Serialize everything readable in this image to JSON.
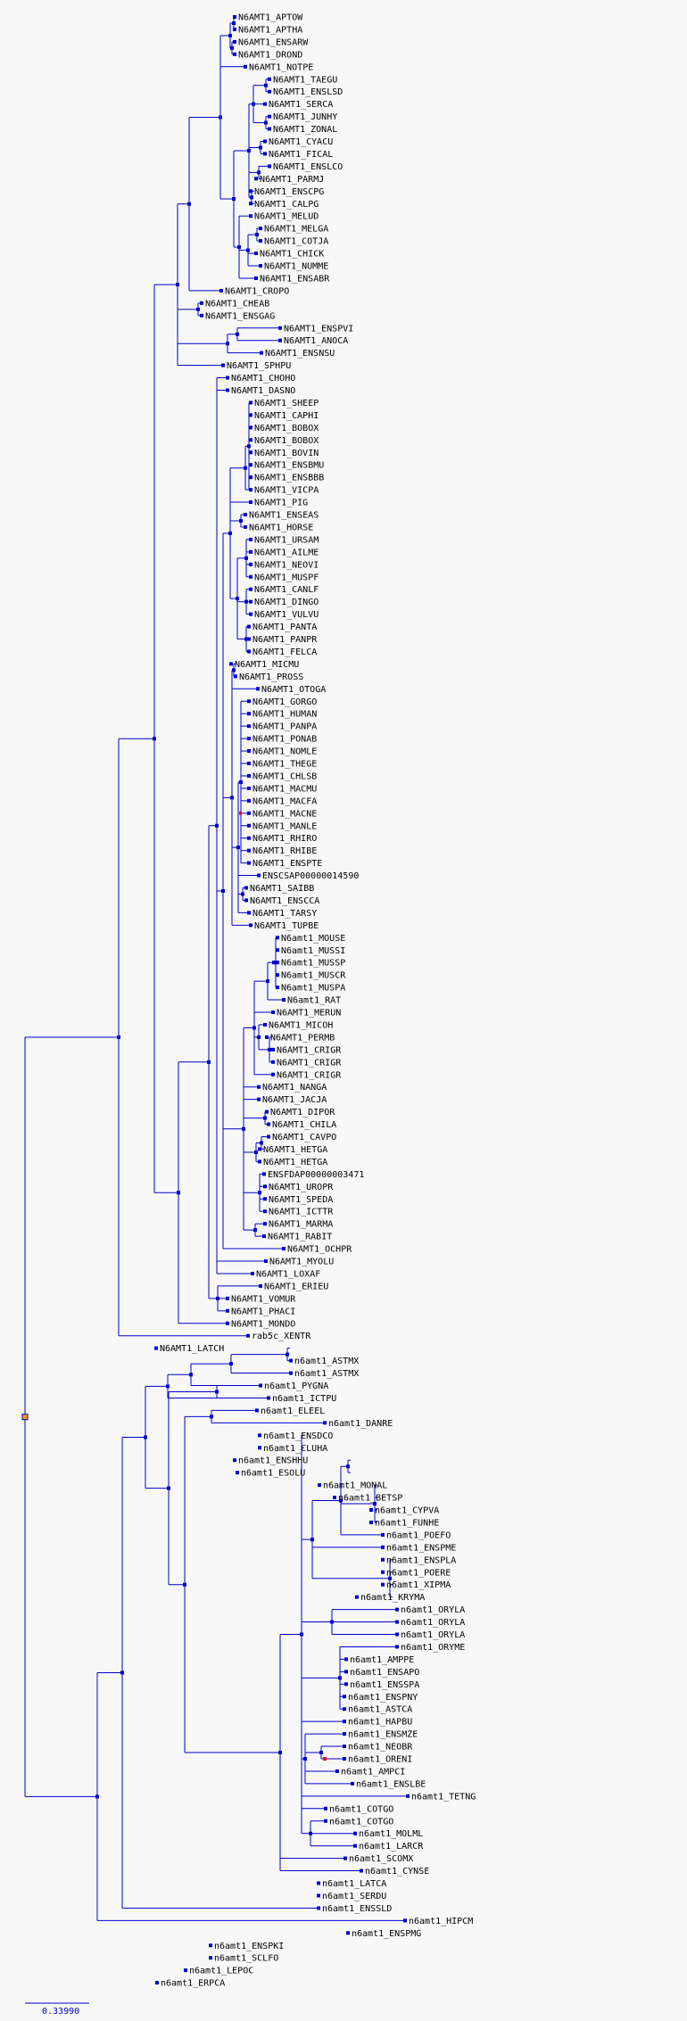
{
  "tree": {
    "line_color": "#0000cc",
    "node_color": "#0000cc",
    "label_color": "#000000",
    "highlight_node_color": "#ff0000",
    "root_node_color": "#ff9900",
    "scale_label": "0.33990",
    "leaves": [
      "N6AMT1_APTOW",
      "N6AMT1_APTHA",
      "N6AMT1_ENSARW",
      "N6AMT1_DROND",
      "N6AMT1_NOTPE",
      "N6AMT1_TAEGU",
      "N6AMT1_ENSLSD",
      "N6AMT1_SERCA",
      "N6AMT1_JUNHY",
      "N6AMT1_ZONAL",
      "N6AMT1_CYACU",
      "N6AMT1_FICAL",
      "N6AMT1_ENSLCO",
      "N6AMT1_PARMJ",
      "N6AMT1_ENSCPG",
      "N6AMT1_CALPG",
      "N6AMT1_MELUD",
      "N6AMT1_MELGA",
      "N6AMT1_COTJA",
      "N6AMT1_CHICK",
      "N6AMT1_NUMME",
      "N6AMT1_ENSABR",
      "N6AMT1_CROPO",
      "N6AMT1_CHEAB",
      "N6AMT1_ENSGAG",
      "N6AMT1_ENSPVI",
      "N6AMT1_ANOCA",
      "N6AMT1_ENSNSU",
      "N6AMT1_SPHPU",
      "N6AMT1_CHOHO",
      "N6AMT1_DASNO",
      "N6AMT1_SHEEP",
      "N6AMT1_CAPHI",
      "N6AMT1_BOBOX",
      "N6AMT1_BOBOX",
      "N6AMT1_BOVIN",
      "N6AMT1_ENSBMU",
      "N6AMT1_ENSBBB",
      "N6AMT1_VICPA",
      "N6AMT1_PIG",
      "N6AMT1_ENSEAS",
      "N6AMT1_HORSE",
      "N6AMT1_URSAM",
      "N6AMT1_AILME",
      "N6AMT1_NEOVI",
      "N6AMT1_MUSPF",
      "N6AMT1_CANLF",
      "N6AMT1_DINGO",
      "N6AMT1_VULVU",
      "N6AMT1_PANTA",
      "N6AMT1_PANPR",
      "N6AMT1_FELCA",
      "N6AMT1_MICMU",
      "N6AMT1_PROSS",
      "N6AMT1_OTOGA",
      "N6AMT1_GORGO",
      "N6AMT1_HUMAN",
      "N6AMT1_PANPA",
      "N6AMT1_PONAB",
      "N6AMT1_NOMLE",
      "N6AMT1_THEGE",
      "N6AMT1_CHLSB",
      "N6AMT1_MACMU",
      "N6AMT1_MACFA",
      "N6AMT1_MACNE",
      "N6AMT1_MANLE",
      "N6AMT1_RHIRO",
      "N6AMT1_RHIBE",
      "N6AMT1_ENSPTE",
      "ENSCSAP00000014590",
      "N6AMT1_SAIBB",
      "N6AMT1_ENSCCA",
      "N6AMT1_TARSY",
      "N6AMT1_TUPBE",
      "N6amt1_MOUSE",
      "N6amt1_MUSSI",
      "N6amt1_MUSSP",
      "N6amt1_MUSCR",
      "N6amt1_MUSPA",
      "N6amt1_RAT",
      "N6AMT1_MERUN",
      "N6AMT1_MICOH",
      "N6AMT1_PERMB",
      "N6AMT1_CRIGR",
      "N6AMT1_CRIGR",
      "N6AMT1_CRIGR",
      "N6AMT1_NANGA",
      "N6AMT1_JACJA",
      "N6AMT1_DIPOR",
      "N6AMT1_CHILA",
      "N6AMT1_CAVPO",
      "N6AMT1_HETGA",
      "N6AMT1_HETGA",
      "ENSFDAP00000003471",
      "N6AMT1_UROPR",
      "N6AMT1_SPEDA",
      "N6AMT1_ICTTR",
      "N6AMT1_MARMA",
      "N6AMT1_RABIT",
      "N6AMT1_OCHPR",
      "N6AMT1_MYOLU",
      "N6AMT1_LOXAF",
      "N6AMT1_ERIEU",
      "N6AMT1_VOMUR",
      "N6AMT1_PHACI",
      "N6AMT1_MONDO",
      "rab5c_XENTR",
      "N6AMT1_LATCH",
      "n6amt1_ASTMX",
      "n6amt1_ASTMX",
      "n6amt1_PYGNA",
      "n6amt1_ICTPU",
      "n6amt1_ELEEL",
      "n6amt1_DANRE",
      "n6amt1_ENSDCO",
      "n6amt1_CLUHA",
      "n6amt1_ENSHHU",
      "n6amt1_ESOLU",
      "n6amt1_MONAL",
      "n6amt1_BETSP",
      "n6amt1_CYPVA",
      "n6amt1_FUNHE",
      "n6amt1_POEFO",
      "n6amt1_ENSPME",
      "n6amt1_ENSPLA",
      "n6amt1_POERE",
      "n6amt1_XIPMA",
      "n6amt1_KRYMA",
      "n6amt1_ORYLA",
      "n6amt1_ORYLA",
      "n6amt1_ORYLA",
      "n6amt1_ORYME",
      "n6amt1_AMPPE",
      "n6amt1_ENSAPO",
      "n6amt1_ENSSPA",
      "n6amt1_ENSPNY",
      "n6amt1_ASTCA",
      "n6amt1_HAPBU",
      "n6amt1_ENSMZE",
      "n6amt1_NEOBR",
      "n6amt1_ORENI",
      "n6amt1_AMPCI",
      "n6amt1_ENSLBE",
      "n6amt1_TETNG",
      "n6amt1_COTGO",
      "n6amt1_COTGO",
      "n6amt1_MOLML",
      "n6amt1_LARCR",
      "n6amt1_SCOMX",
      "n6amt1_CYNSE",
      "n6amt1_LATCA",
      "n6amt1_SERDU",
      "n6amt1_ENSSLD",
      "n6amt1_HIPCM",
      "n6amt1_ENSPMG",
      "n6amt1_ENSPKI",
      "n6amt1_SCLFO",
      "n6amt1_LEPOC",
      "n6amt1_ERPCA"
    ]
  }
}
